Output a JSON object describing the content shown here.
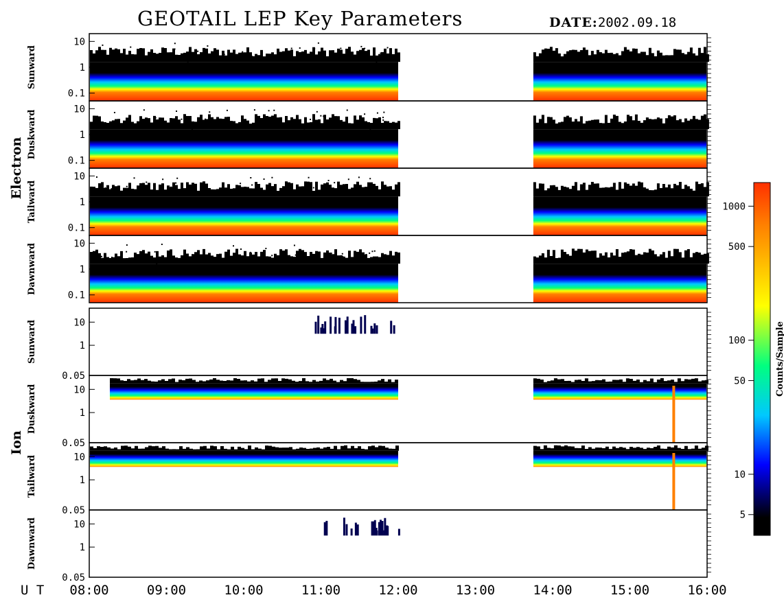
{
  "header": {
    "title": "GEOTAIL LEP Key Parameters",
    "date_label": "DATE:",
    "date_value": "2002.09.18"
  },
  "chart_data": {
    "type": "heatmap",
    "x_axis": {
      "label": "U T",
      "ticks": [
        "08:00",
        "09:00",
        "10:00",
        "11:00",
        "12:00",
        "13:00",
        "14:00",
        "15:00",
        "16:00"
      ],
      "range": [
        "08:00",
        "16:00"
      ]
    },
    "data_gap": [
      "12:00",
      "13:45"
    ],
    "groups": [
      {
        "name": "Electron",
        "panels": [
          {
            "name": "Sunward",
            "ylim": [
              0.05,
              20
            ],
            "y_ticks": [
              "10",
              "1",
              "0.1"
            ]
          },
          {
            "name": "Duskward",
            "ylim": [
              0.05,
              20
            ],
            "y_ticks": [
              "10",
              "1",
              "0.1"
            ]
          },
          {
            "name": "Tailward",
            "ylim": [
              0.05,
              20
            ],
            "y_ticks": [
              "10",
              "1",
              "0.1"
            ]
          },
          {
            "name": "Dawnward",
            "ylim": [
              0.05,
              20
            ],
            "y_ticks": [
              "10",
              "1",
              "0.1"
            ]
          }
        ]
      },
      {
        "name": "Ion",
        "panels": [
          {
            "name": "Sunward",
            "ylim": [
              0.05,
              40
            ],
            "y_ticks": [
              "10",
              "1",
              "0.05"
            ]
          },
          {
            "name": "Duskward",
            "ylim": [
              0.05,
              40
            ],
            "y_ticks": [
              "10",
              "1",
              "0.05"
            ]
          },
          {
            "name": "Tailward",
            "ylim": [
              0.05,
              40
            ],
            "y_ticks": [
              "10",
              "1",
              "0.05"
            ]
          },
          {
            "name": "Dawnward",
            "ylim": [
              0.05,
              40
            ],
            "y_ticks": [
              "10",
              "1",
              "0.05"
            ]
          }
        ]
      }
    ],
    "colorbar": {
      "label": "Counts/Sample",
      "scale": "log",
      "range": [
        3.5,
        1500
      ],
      "ticks": [
        "1000",
        "500",
        "100",
        "50",
        "10",
        "5"
      ],
      "colors": [
        "#000000",
        "#0000ff",
        "#00c8ff",
        "#00ff80",
        "#ffff00",
        "#ff8000",
        "#ff3000"
      ]
    }
  }
}
